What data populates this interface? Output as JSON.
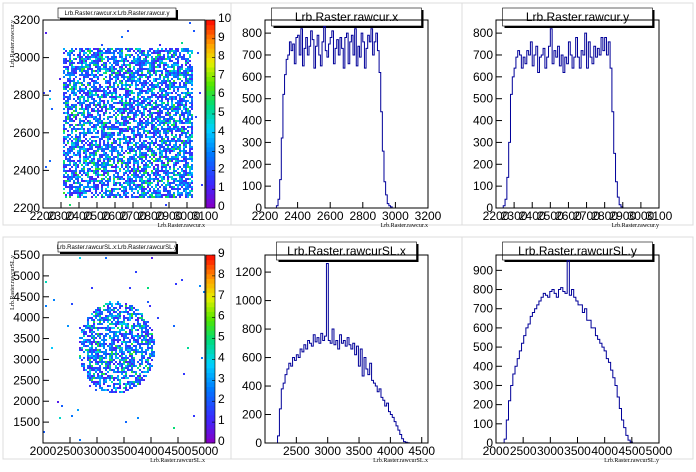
{
  "chart_data": [
    {
      "id": "p1",
      "type": "heatmap",
      "title": "Lrb.Raster.rawcur.x:Lrb.Raster.rawcur.y",
      "xlabel": "Lrb.Raster.rawcur.x",
      "ylabel": "Lrb.Raster.rawcur.y",
      "xlim": [
        2200,
        3100
      ],
      "ylim": [
        2200,
        3200
      ],
      "xticks": [
        2200,
        2300,
        2400,
        2500,
        2600,
        2700,
        2800,
        2900,
        3000,
        3100
      ],
      "xtick_labels": [
        "2200",
        "2300",
        "2400",
        "2500",
        "2600",
        "2700",
        "2800",
        "2900",
        "3000",
        "3100"
      ],
      "yticks": [
        2200,
        2400,
        2600,
        2800,
        3000,
        3200
      ],
      "ytick_labels": [
        "2200",
        "2400",
        "2600",
        "2800",
        "3000",
        "3200"
      ],
      "palette_ticks": [
        0,
        1,
        2,
        3,
        4,
        5,
        6,
        7,
        8,
        9,
        10
      ],
      "palette_labels": [
        "0",
        "1",
        "2",
        "3",
        "4",
        "5",
        "6",
        "7",
        "8",
        "9",
        "10"
      ],
      "zmax": 10,
      "region": {
        "shape": "rect",
        "x": [
          2310,
          3030
        ],
        "y": [
          2260,
          3060
        ]
      }
    },
    {
      "id": "p2",
      "type": "bar",
      "title": "Lrb.Raster.rawcur.x",
      "xlabel": "Lrb.Raster.rawcur.x",
      "xlim": [
        2200,
        3200
      ],
      "ylim": [
        0,
        860
      ],
      "xticks": [
        2200,
        2400,
        2600,
        2800,
        3000,
        3200
      ],
      "xtick_labels": [
        "2200",
        "2400",
        "2600",
        "2800",
        "3000",
        "3200"
      ],
      "yticks": [
        0,
        100,
        200,
        300,
        400,
        500,
        600,
        700,
        800
      ],
      "ytick_labels": [
        "0",
        "100",
        "200",
        "300",
        "400",
        "500",
        "600",
        "700",
        "800"
      ],
      "bins": {
        "x0": 2270,
        "width": 10,
        "values": [
          10,
          40,
          130,
          320,
          520,
          610,
          680,
          700,
          760,
          720,
          750,
          660,
          780,
          790,
          700,
          820,
          650,
          730,
          780,
          700,
          740,
          810,
          770,
          640,
          740,
          790,
          700,
          650,
          760,
          830,
          720,
          690,
          750,
          780,
          810,
          660,
          730,
          770,
          700,
          780,
          730,
          640,
          780,
          800,
          660,
          760,
          790,
          700,
          820,
          650,
          740,
          690,
          800,
          760,
          640,
          730,
          790,
          760,
          820,
          700,
          760,
          800,
          720,
          620,
          440,
          260,
          120,
          60,
          20,
          10,
          5
        ]
      }
    },
    {
      "id": "p3",
      "type": "bar",
      "title": "Lrb.Raster.rawcur.y",
      "xlabel": "Lrb.Raster.rawcur.y",
      "xlim": [
        2200,
        3100
      ],
      "ylim": [
        0,
        860
      ],
      "xticks": [
        2200,
        2300,
        2400,
        2500,
        2600,
        2700,
        2800,
        2900,
        3000,
        3100
      ],
      "xtick_labels": [
        "2200",
        "2300",
        "2400",
        "2500",
        "2600",
        "2700",
        "2800",
        "2900",
        "3000",
        "3100"
      ],
      "yticks": [
        0,
        100,
        200,
        300,
        400,
        500,
        600,
        700,
        800
      ],
      "ytick_labels": [
        "0",
        "100",
        "200",
        "300",
        "400",
        "500",
        "600",
        "700",
        "800"
      ],
      "bins": {
        "x0": 2240,
        "width": 10,
        "values": [
          10,
          40,
          140,
          300,
          520,
          600,
          640,
          690,
          720,
          700,
          640,
          690,
          660,
          720,
          700,
          760,
          650,
          700,
          740,
          620,
          690,
          700,
          730,
          640,
          690,
          740,
          820,
          660,
          720,
          690,
          740,
          650,
          700,
          620,
          690,
          660,
          760,
          700,
          640,
          690,
          780,
          690,
          640,
          720,
          700,
          800,
          640,
          760,
          690,
          660,
          740,
          690,
          730,
          700,
          780,
          720,
          780,
          700,
          760,
          640,
          440,
          250,
          120,
          50,
          15,
          5
        ]
      }
    },
    {
      "id": "p4",
      "type": "heatmap",
      "title": "Lrb.Raster.rawcurSL.x:Lrb.Raster.rawcurSL.y",
      "xlabel": "Lrb.Raster.rawcurSL.x",
      "ylabel": "Lrb.Raster.rawcurSL.y",
      "xlim": [
        2000,
        5000
      ],
      "ylim": [
        1000,
        5500
      ],
      "xticks": [
        2000,
        2500,
        3000,
        3500,
        4000,
        4500,
        5000
      ],
      "xtick_labels": [
        "2000",
        "2500",
        "3000",
        "3500",
        "4000",
        "4500",
        "5000"
      ],
      "yticks": [
        1500,
        2000,
        2500,
        3000,
        3500,
        4000,
        4500,
        5000,
        5500
      ],
      "ytick_labels": [
        "1500",
        "2000",
        "2500",
        "3000",
        "3500",
        "4000",
        "4500",
        "5000",
        "5500"
      ],
      "palette_ticks": [
        0,
        1,
        2,
        3,
        4,
        5,
        6,
        7,
        8,
        9
      ],
      "palette_labels": [
        "0",
        "1",
        "2",
        "3",
        "4",
        "5",
        "6",
        "7",
        "8",
        "9"
      ],
      "zmax": 9,
      "region": {
        "shape": "circle",
        "cx": 3350,
        "cy": 3300,
        "rx": 1420,
        "ry": 2200
      }
    },
    {
      "id": "p5",
      "type": "bar",
      "title": "Lrb.Raster.rawcurSL.x",
      "xlabel": "Lrb.Raster.rawcurSL.x",
      "xlim": [
        2000,
        4600
      ],
      "ylim": [
        0,
        1320
      ],
      "xticks": [
        2500,
        3000,
        3500,
        4000,
        4500
      ],
      "xtick_labels": [
        "2500",
        "3000",
        "3500",
        "4000",
        "4500"
      ],
      "yticks": [
        0,
        200,
        400,
        600,
        800,
        1000,
        1200
      ],
      "ytick_labels": [
        "0",
        "200",
        "400",
        "600",
        "800",
        "1000",
        "1200"
      ],
      "bins": {
        "x0": 2200,
        "width": 30,
        "values": [
          50,
          240,
          380,
          420,
          480,
          520,
          560,
          540,
          600,
          580,
          620,
          600,
          660,
          640,
          690,
          660,
          720,
          700,
          680,
          760,
          710,
          740,
          700,
          770,
          720,
          750,
          1260,
          720,
          700,
          800,
          690,
          720,
          660,
          760,
          700,
          720,
          680,
          740,
          690,
          660,
          700,
          620,
          680,
          540,
          660,
          470,
          600,
          520,
          480,
          560,
          440,
          420,
          400,
          360,
          380,
          320,
          300,
          260,
          280,
          220,
          200,
          180,
          150,
          120,
          90,
          60,
          30,
          10,
          5,
          2
        ]
      }
    },
    {
      "id": "p6",
      "type": "bar",
      "title": "Lrb.Raster.rawcurSL.y",
      "xlabel": "Lrb.Raster.rawcurSL.y",
      "xlim": [
        2000,
        5000
      ],
      "ylim": [
        0,
        980
      ],
      "xticks": [
        2000,
        2500,
        3000,
        3500,
        4000,
        4500,
        5000
      ],
      "xtick_labels": [
        "2000",
        "2500",
        "3000",
        "3500",
        "4000",
        "4500",
        "5000"
      ],
      "yticks": [
        0,
        100,
        200,
        300,
        400,
        500,
        600,
        700,
        800,
        900
      ],
      "ytick_labels": [
        "0",
        "100",
        "200",
        "300",
        "400",
        "500",
        "600",
        "700",
        "800",
        "900"
      ],
      "bins": {
        "x0": 2150,
        "width": 40,
        "values": [
          20,
          120,
          220,
          300,
          360,
          400,
          440,
          480,
          520,
          560,
          600,
          620,
          660,
          680,
          700,
          720,
          740,
          760,
          780,
          770,
          760,
          790,
          800,
          780,
          760,
          800,
          810,
          790,
          780,
          950,
          770,
          800,
          760,
          740,
          720,
          720,
          680,
          700,
          640,
          640,
          600,
          600,
          560,
          540,
          520,
          500,
          480,
          440,
          420,
          380,
          340,
          300,
          240,
          180,
          120,
          80,
          40,
          15,
          5
        ]
      }
    }
  ]
}
